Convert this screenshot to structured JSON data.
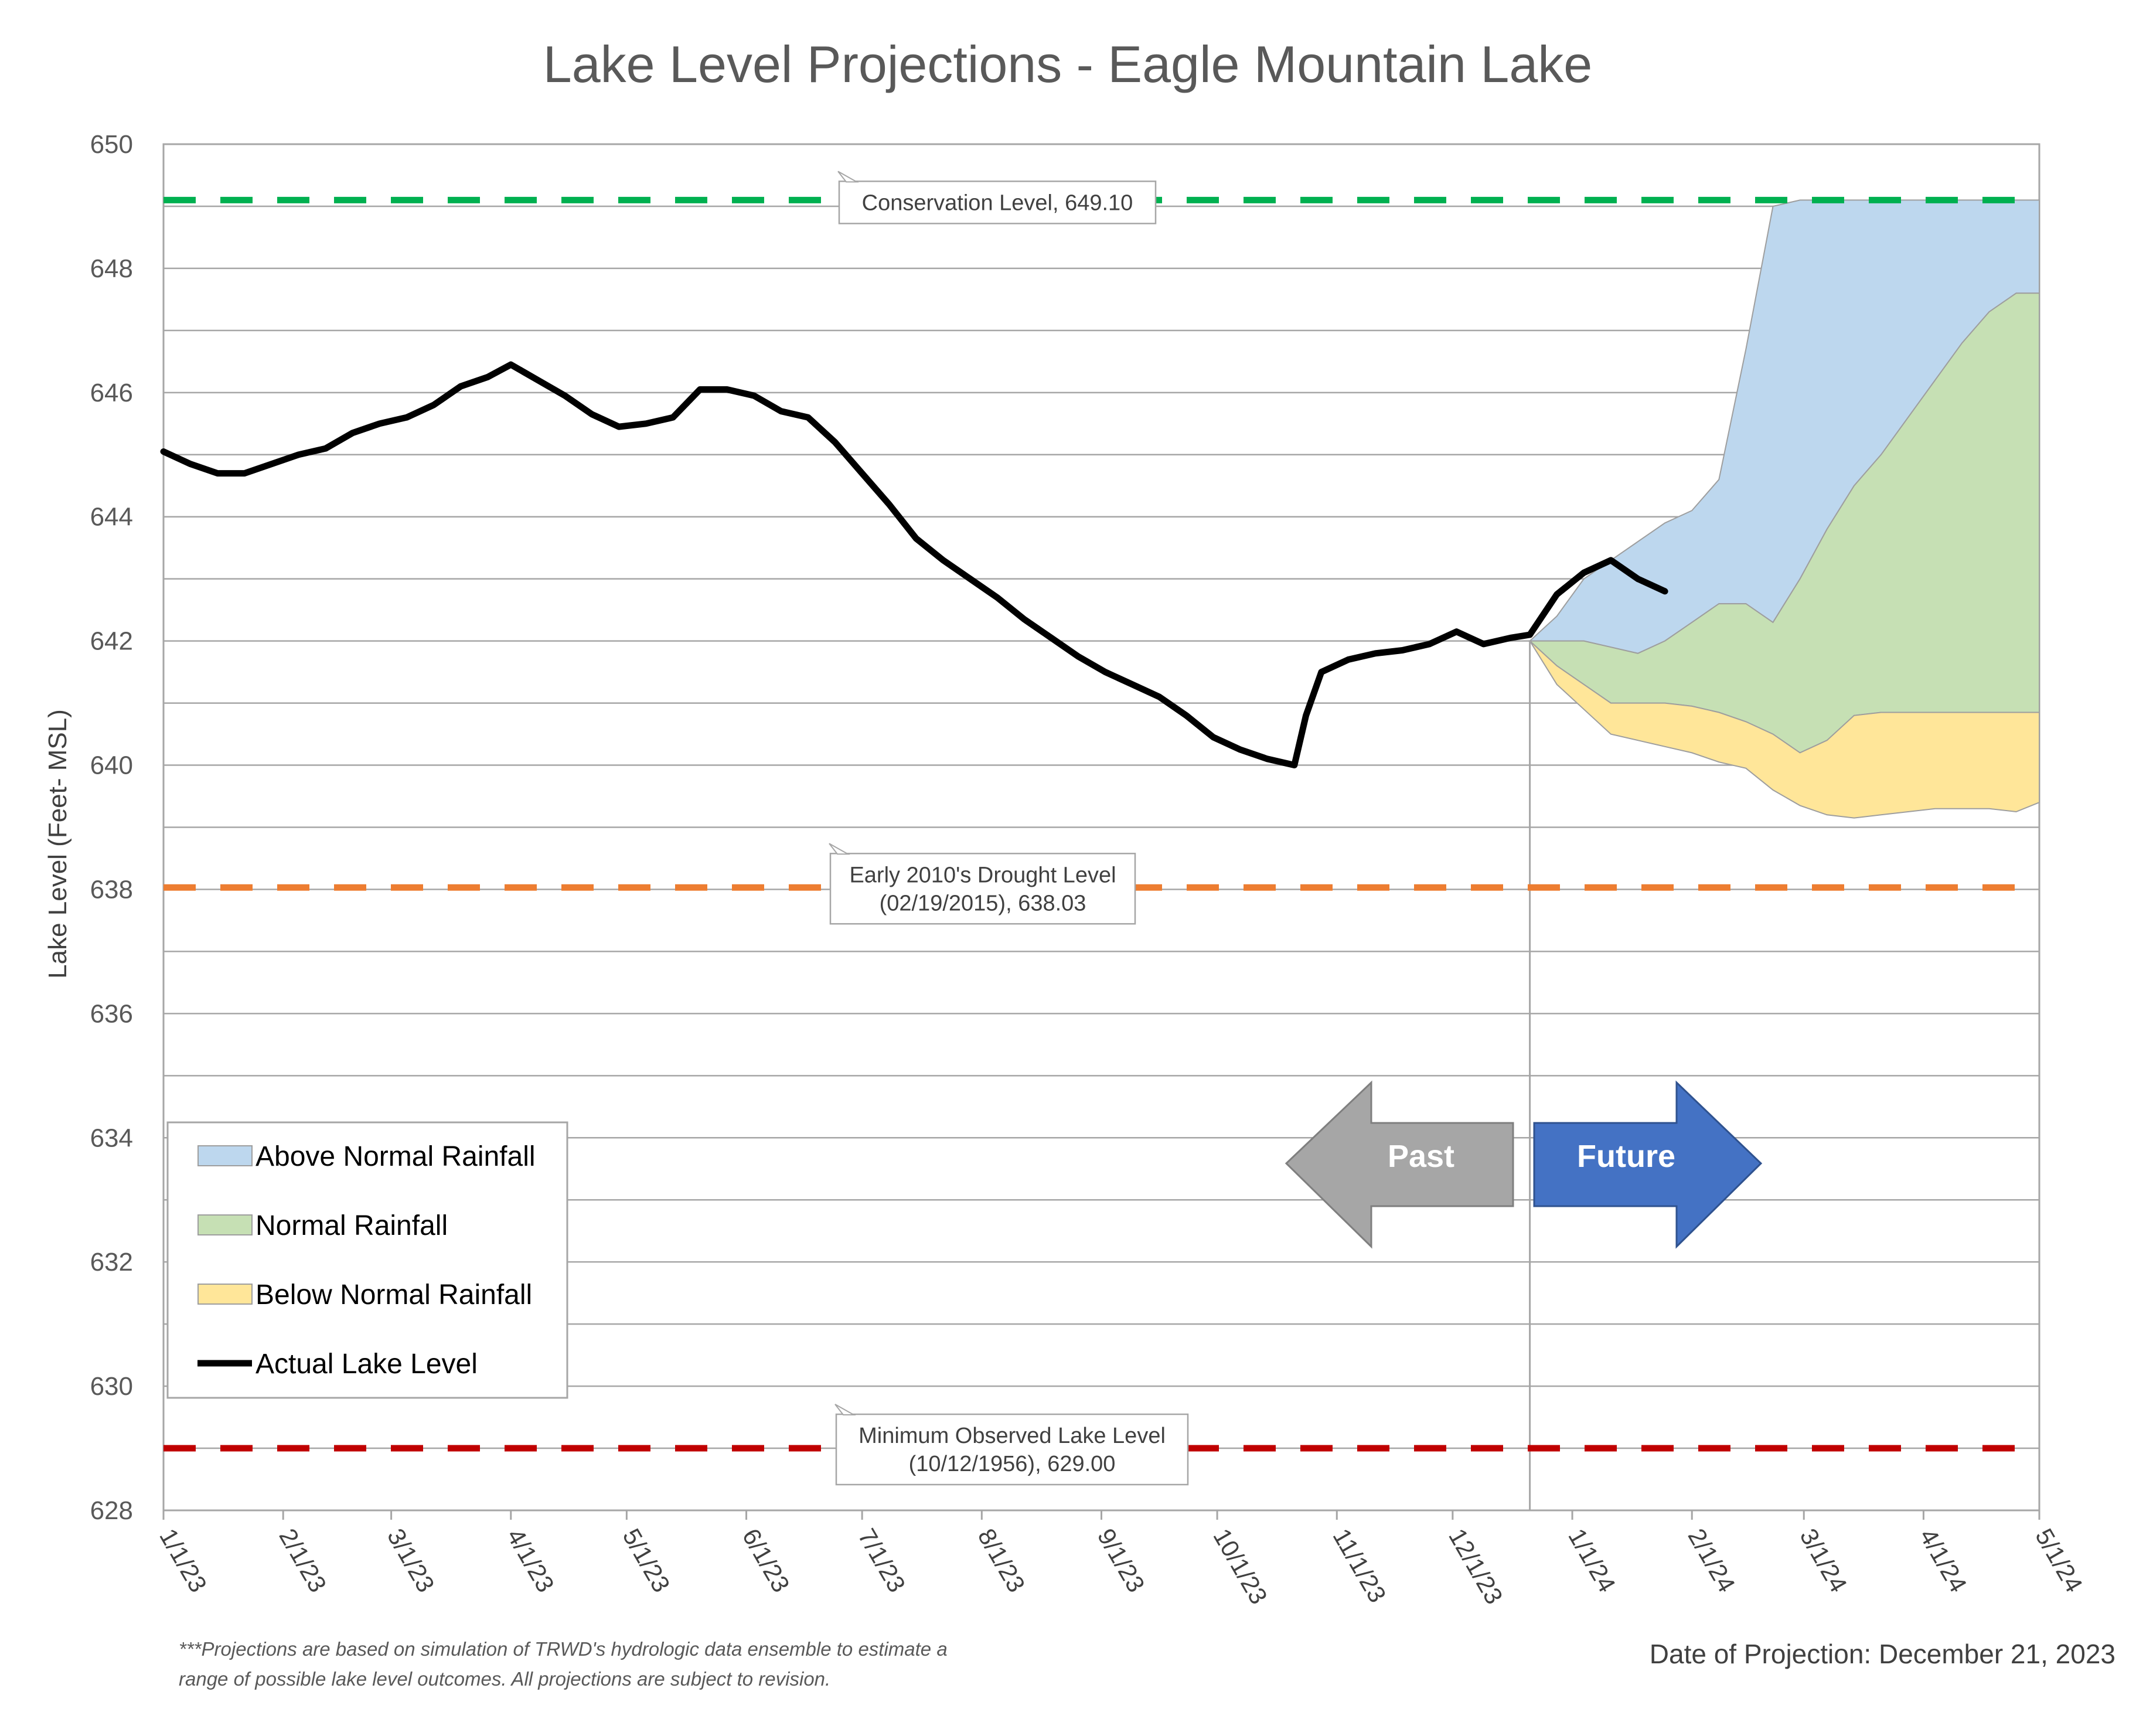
{
  "chart_data": {
    "type": "area",
    "title": "Lake Level Projections - Eagle Mountain Lake",
    "ylabel": "Lake Level (Feet- MSL)",
    "xlabel": "",
    "ylim": [
      628,
      650
    ],
    "yticks": [
      "628",
      "630",
      "632",
      "634",
      "636",
      "638",
      "640",
      "642",
      "644",
      "646",
      "648",
      "650"
    ],
    "xtick_labels": [
      "1/1/23",
      "2/1/23",
      "3/1/23",
      "4/1/23",
      "5/1/23",
      "6/1/23",
      "7/1/23",
      "8/1/23",
      "9/1/23",
      "10/1/23",
      "11/1/23",
      "12/1/23",
      "1/1/24",
      "2/1/24",
      "3/1/24",
      "4/1/24",
      "5/1/24"
    ],
    "grid": true,
    "legend_position": "bottom-left",
    "projection_start": "12/21/23",
    "reference_lines": [
      {
        "label": "Conservation Level, 649.10",
        "value": 649.1,
        "color": "#00b050"
      },
      {
        "label": "Early 2010's Drought Level",
        "label2": "(02/19/2015), 638.03",
        "value": 638.03,
        "color": "#ed7d31"
      },
      {
        "label": "Minimum Observed Lake Level",
        "label2": "(10/12/1956), 629.00",
        "value": 629.0,
        "color": "#c00000"
      }
    ],
    "series": [
      {
        "name": "Above Normal Rainfall",
        "color": "#bdd7ee",
        "x": [
          "12/21/23",
          "12/28/23",
          "1/4/24",
          "1/11/24",
          "1/18/24",
          "1/25/24",
          "2/1/24",
          "2/8/24",
          "2/15/24",
          "2/22/24",
          "2/29/24",
          "3/7/24",
          "3/14/24",
          "3/21/24",
          "3/28/24",
          "4/4/24",
          "4/11/24",
          "4/18/24",
          "4/25/24",
          "5/1/24"
        ],
        "upper": [
          642.0,
          642.4,
          643.0,
          643.3,
          643.6,
          643.9,
          644.1,
          644.6,
          646.7,
          649.0,
          649.1,
          649.1,
          649.1,
          649.1,
          649.1,
          649.1,
          649.1,
          649.1,
          649.1,
          649.1
        ],
        "lower": [
          642.0,
          642.0,
          642.0,
          641.9,
          641.8,
          642.0,
          642.3,
          642.6,
          642.6,
          642.3,
          643.0,
          643.8,
          644.5,
          645.0,
          645.6,
          646.2,
          646.8,
          647.3,
          647.6,
          647.6
        ]
      },
      {
        "name": "Normal Rainfall",
        "color": "#c6e0b4",
        "x": [
          "12/21/23",
          "12/28/23",
          "1/4/24",
          "1/11/24",
          "1/18/24",
          "1/25/24",
          "2/1/24",
          "2/8/24",
          "2/15/24",
          "2/22/24",
          "2/29/24",
          "3/7/24",
          "3/14/24",
          "3/21/24",
          "3/28/24",
          "4/4/24",
          "4/11/24",
          "4/18/24",
          "4/25/24",
          "5/1/24"
        ],
        "upper": [
          642.0,
          642.0,
          642.0,
          641.9,
          641.8,
          642.0,
          642.3,
          642.6,
          642.6,
          642.3,
          643.0,
          643.8,
          644.5,
          645.0,
          645.6,
          646.2,
          646.8,
          647.3,
          647.6,
          647.6
        ],
        "lower": [
          642.0,
          641.6,
          641.3,
          641.0,
          641.0,
          641.0,
          640.95,
          640.85,
          640.7,
          640.5,
          640.2,
          640.4,
          640.8,
          640.85,
          640.85,
          640.85,
          640.85,
          640.85,
          640.85,
          640.85
        ]
      },
      {
        "name": "Below Normal Rainfall",
        "color": "#ffe699",
        "x": [
          "12/21/23",
          "12/28/23",
          "1/4/24",
          "1/11/24",
          "1/18/24",
          "1/25/24",
          "2/1/24",
          "2/8/24",
          "2/15/24",
          "2/22/24",
          "2/29/24",
          "3/7/24",
          "3/14/24",
          "3/21/24",
          "3/28/24",
          "4/4/24",
          "4/11/24",
          "4/18/24",
          "4/25/24",
          "5/1/24"
        ],
        "upper": [
          642.0,
          641.6,
          641.3,
          641.0,
          641.0,
          641.0,
          640.95,
          640.85,
          640.7,
          640.5,
          640.2,
          640.4,
          640.8,
          640.85,
          640.85,
          640.85,
          640.85,
          640.85,
          640.85,
          640.85
        ],
        "lower": [
          642.0,
          641.3,
          640.9,
          640.5,
          640.4,
          640.3,
          640.2,
          640.05,
          639.95,
          639.6,
          639.35,
          639.2,
          639.15,
          639.2,
          639.25,
          639.3,
          639.3,
          639.3,
          639.25,
          639.4
        ]
      },
      {
        "name": "Actual Lake Level",
        "color": "#000000",
        "x": [
          "1/1/23",
          "1/8/23",
          "1/15/23",
          "1/22/23",
          "1/29/23",
          "2/5/23",
          "2/12/23",
          "2/19/23",
          "2/26/23",
          "3/5/23",
          "3/12/23",
          "3/19/23",
          "3/26/23",
          "4/1/23",
          "4/8/23",
          "4/15/23",
          "4/22/23",
          "4/29/23",
          "5/6/23",
          "5/13/23",
          "5/20/23",
          "5/27/23",
          "6/3/23",
          "6/10/23",
          "6/17/23",
          "6/24/23",
          "7/1/23",
          "7/8/23",
          "7/15/23",
          "7/22/23",
          "7/29/23",
          "8/5/23",
          "8/12/23",
          "8/19/23",
          "8/26/23",
          "9/2/23",
          "9/9/23",
          "9/16/23",
          "9/23/23",
          "9/30/23",
          "10/7/23",
          "10/14/23",
          "10/21/23",
          "10/24/23",
          "10/28/23",
          "11/4/23",
          "11/11/23",
          "11/18/23",
          "11/25/23",
          "12/2/23",
          "12/9/23",
          "12/16/23",
          "12/21/23",
          "12/28/23",
          "1/4/24",
          "1/11/24",
          "1/18/24",
          "1/25/24"
        ],
        "values": [
          645.05,
          644.85,
          644.7,
          644.7,
          644.85,
          645.0,
          645.1,
          645.35,
          645.5,
          645.6,
          645.8,
          646.1,
          646.25,
          646.45,
          646.2,
          645.95,
          645.65,
          645.45,
          645.5,
          645.6,
          646.05,
          646.05,
          645.95,
          645.7,
          645.6,
          645.2,
          644.7,
          644.2,
          643.65,
          643.3,
          643.0,
          642.7,
          642.35,
          642.05,
          641.75,
          641.5,
          641.3,
          641.1,
          640.8,
          640.45,
          640.25,
          640.1,
          640.0,
          640.8,
          641.5,
          641.7,
          641.8,
          641.85,
          641.95,
          642.15,
          641.95,
          642.05,
          642.1,
          642.75,
          643.1,
          643.3,
          643.0,
          642.8
        ]
      }
    ],
    "annotations": [
      "Past",
      "Future"
    ]
  },
  "footnote": {
    "line1": "***Projections are based on simulation of TRWD's hydrologic data ensemble to estimate a",
    "line2": "range of possible lake level outcomes.  All projections are subject to revision."
  },
  "projection_date": "Date of Projection: December 21, 2023"
}
